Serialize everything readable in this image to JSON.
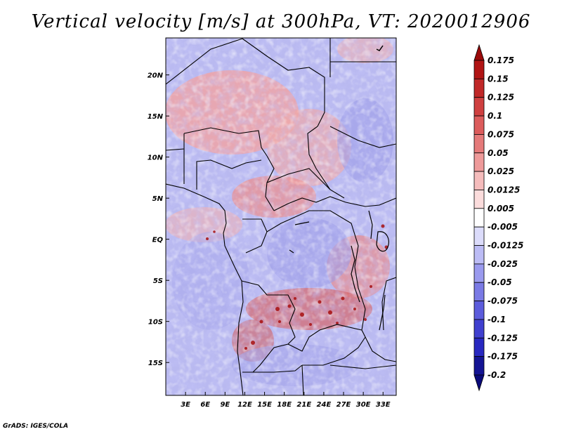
{
  "title": "Vertical velocity [m/s] at 300hPa, VT: 2020012906",
  "credit": "GrADS: IGES/COLA",
  "map": {
    "region": "Central Africa",
    "lon_labels": [
      "3E",
      "6E",
      "9E",
      "12E",
      "15E",
      "18E",
      "21E",
      "24E",
      "27E",
      "30E",
      "33E"
    ],
    "lon_values": [
      3,
      6,
      9,
      12,
      15,
      18,
      21,
      24,
      27,
      30,
      33
    ],
    "lat_labels": [
      "20N",
      "15N",
      "10N",
      "5N",
      "EQ",
      "5S",
      "10S",
      "15S"
    ],
    "lat_values": [
      20,
      15,
      10,
      5,
      0,
      -5,
      -10,
      -15
    ],
    "extent": {
      "lon_min": 0,
      "lon_max": 35,
      "lat_min": -19,
      "lat_max": 24.5
    }
  },
  "colorbar": {
    "labels": [
      "0.175",
      "0.15",
      "0.125",
      "0.1",
      "0.075",
      "0.05",
      "0.025",
      "0.0125",
      "0.005",
      "-0.005",
      "-0.0125",
      "-0.025",
      "-0.05",
      "-0.075",
      "-0.1",
      "-0.125",
      "-0.175",
      "-0.2"
    ],
    "colors": [
      "#9b0a0a",
      "#b01414",
      "#c02828",
      "#cf4040",
      "#dc5c5c",
      "#e57a7a",
      "#ee9a9a",
      "#f5bcbc",
      "#fbdcdc",
      "#ffffff",
      "#dcdcfb",
      "#bcbcf5",
      "#9a9aee",
      "#7a7ae5",
      "#5c5cdc",
      "#4040cf",
      "#2828c0",
      "#141494",
      "#0a0a7a"
    ]
  }
}
